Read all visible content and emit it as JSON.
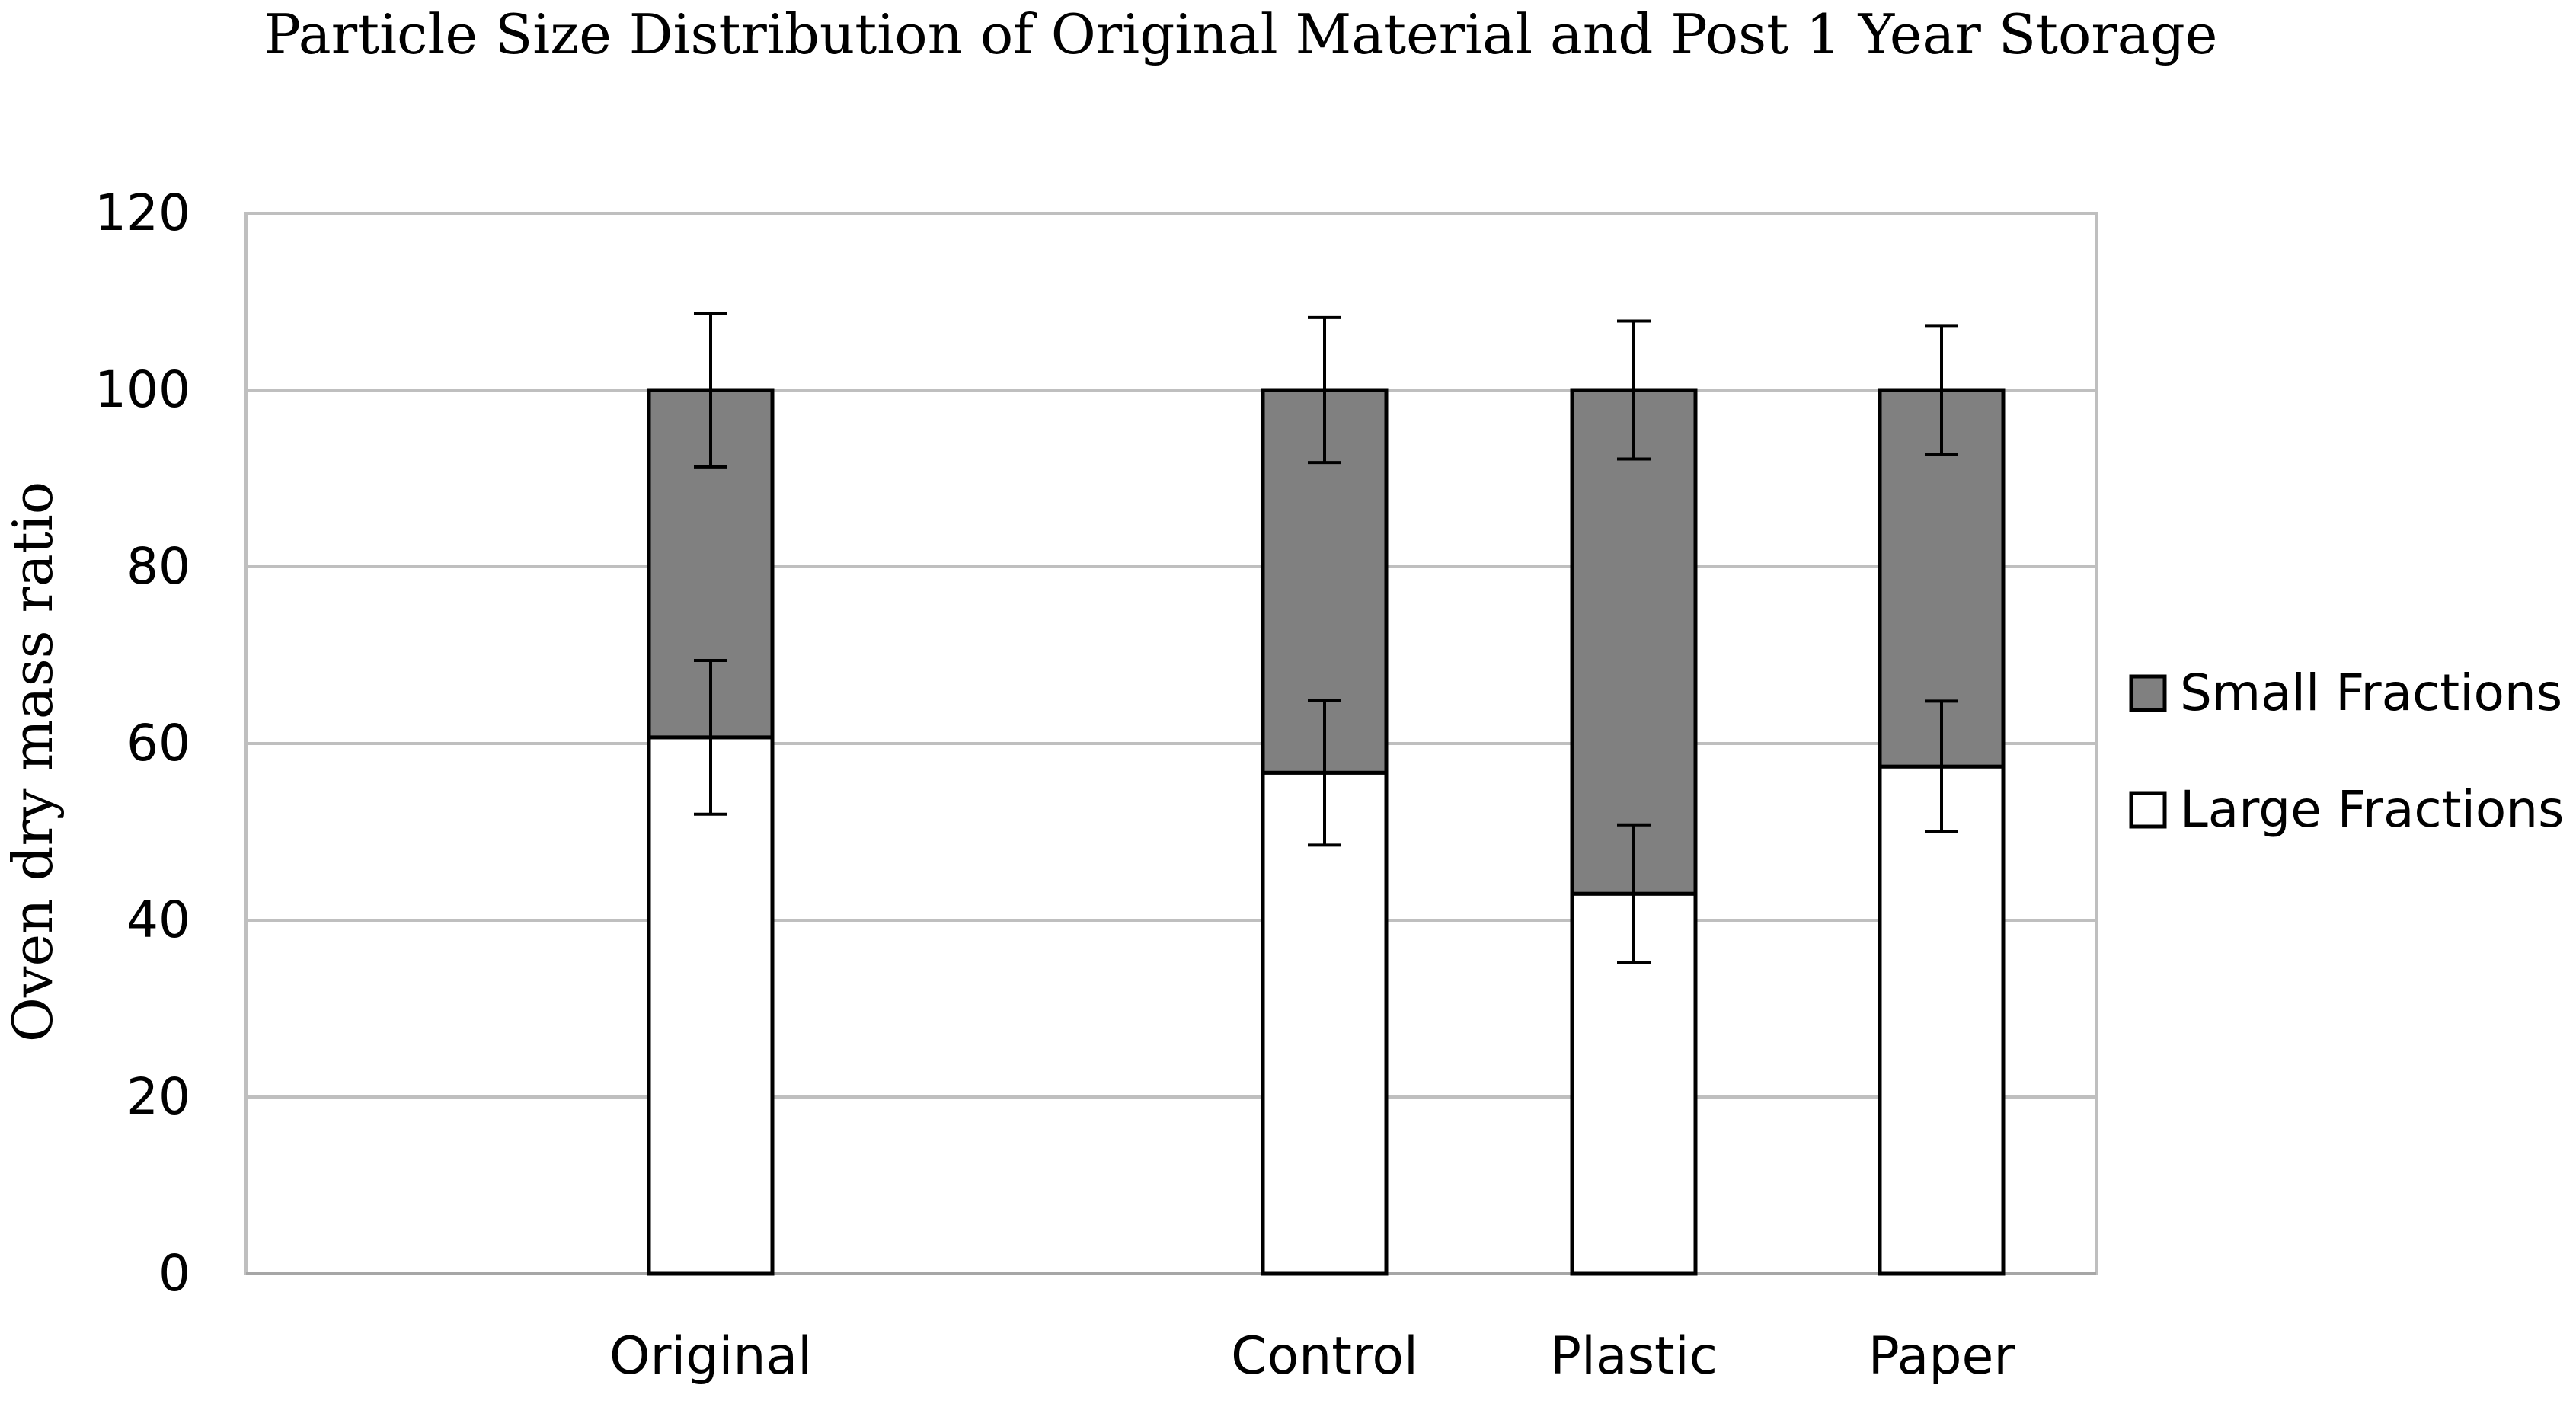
{
  "chart_data": {
    "type": "bar",
    "stacked": true,
    "title": "Particle Size Distribution of Original Material and Post 1 Year Storage",
    "xlabel": "",
    "ylabel": "Oven dry mass ratio",
    "ylim": [
      0,
      120
    ],
    "yticks": [
      0,
      20,
      40,
      60,
      80,
      100,
      120
    ],
    "grid": true,
    "legend_position": "right",
    "categories": [
      "Original",
      "",
      "Control",
      "Plastic",
      "Paper"
    ],
    "series": [
      {
        "name": "Large Fractions",
        "color": "#ffffff",
        "values": [
          60.7,
          null,
          56.7,
          43.0,
          57.4
        ],
        "error": [
          8.7,
          null,
          8.2,
          7.8,
          7.4
        ]
      },
      {
        "name": "Small Fractions",
        "color": "#808080",
        "values": [
          39.3,
          null,
          43.3,
          57.0,
          42.6
        ],
        "error": [
          8.7,
          null,
          8.2,
          7.8,
          7.3
        ]
      }
    ],
    "legend_order": [
      "Small Fractions",
      "Large Fractions"
    ]
  }
}
